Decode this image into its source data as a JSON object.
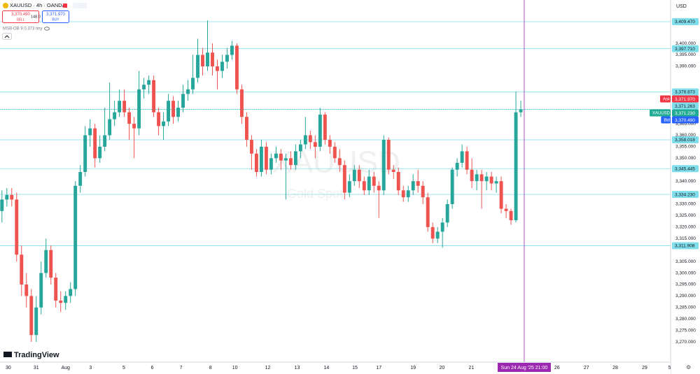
{
  "header": {
    "symbol": "XAUUSD · 4h · OANDA",
    "sell_price": "3,370.490",
    "sell_label": "SELL",
    "spread": "148.0",
    "buy_price": "3,371.970",
    "buy_label": "BUY",
    "indicator": "MSB-OB 9 0.373 tiny",
    "currency": "USD"
  },
  "watermark": {
    "symbol": "XAUUSD",
    "name": "Gold Spot"
  },
  "logo": "TradingView",
  "chart_data": {
    "type": "candlestick",
    "up_color": "#26a69a",
    "down_color": "#ef5350",
    "open": [
      3327,
      3332,
      3334,
      3332,
      3308,
      3295,
      3290,
      3273,
      3285,
      3300,
      3310,
      3298,
      3288,
      3287,
      3290,
      3293,
      3338,
      3344,
      3360,
      3363,
      3350,
      3355,
      3360,
      3367,
      3370,
      3375,
      3370,
      3365,
      3363,
      3380,
      3382,
      3384,
      3370,
      3364,
      3366,
      3375,
      3368,
      3372,
      3378,
      3380,
      3385,
      3395,
      3390,
      3396,
      3390,
      3388,
      3392,
      3395,
      3399,
      3380,
      3368,
      3358,
      3352,
      3344,
      3355,
      3345,
      3350,
      3352,
      3349,
      3350,
      3347,
      3353,
      3356,
      3360,
      3357,
      3355,
      3369,
      3358,
      3355,
      3350,
      3347,
      3335,
      3340,
      3345,
      3340,
      3336,
      3342,
      3338,
      3336,
      3358,
      3345,
      3344,
      3336,
      3333,
      3336,
      3340,
      3338,
      3333,
      3320,
      3315,
      3318,
      3322,
      3330,
      3345,
      3348,
      3353,
      3345,
      3340,
      3343,
      3340,
      3342,
      3339,
      3340,
      3328,
      3327,
      3323,
      3370
    ],
    "high": [
      3336,
      3337,
      3337,
      3335,
      3312,
      3300,
      3293,
      3290,
      3305,
      3315,
      3312,
      3300,
      3292,
      3292,
      3296,
      3340,
      3347,
      3364,
      3367,
      3365,
      3360,
      3372,
      3383,
      3375,
      3380,
      3380,
      3372,
      3368,
      3388,
      3385,
      3386,
      3386,
      3372,
      3370,
      3378,
      3377,
      3375,
      3382,
      3384,
      3395,
      3402,
      3398,
      3410,
      3400,
      3393,
      3395,
      3398,
      3401,
      3400,
      3382,
      3370,
      3360,
      3354,
      3358,
      3357,
      3352,
      3355,
      3354,
      3352,
      3353,
      3356,
      3358,
      3368,
      3362,
      3360,
      3372,
      3370,
      3360,
      3357,
      3354,
      3349,
      3343,
      3347,
      3347,
      3342,
      3345,
      3344,
      3340,
      3360,
      3359,
      3347,
      3346,
      3338,
      3338,
      3343,
      3345,
      3340,
      3335,
      3322,
      3320,
      3324,
      3332,
      3346,
      3350,
      3356,
      3355,
      3350,
      3345,
      3345,
      3344,
      3344,
      3342,
      3342,
      3330,
      3328,
      3379,
      3375
    ],
    "low": [
      3322,
      3329,
      3329,
      3305,
      3290,
      3285,
      3270,
      3270,
      3282,
      3298,
      3295,
      3285,
      3283,
      3284,
      3287,
      3290,
      3335,
      3342,
      3355,
      3346,
      3348,
      3353,
      3358,
      3364,
      3368,
      3368,
      3358,
      3350,
      3360,
      3376,
      3378,
      3368,
      3360,
      3358,
      3364,
      3365,
      3366,
      3370,
      3375,
      3378,
      3383,
      3386,
      3388,
      3386,
      3380,
      3385,
      3389,
      3393,
      3378,
      3365,
      3355,
      3345,
      3342,
      3342,
      3343,
      3343,
      3348,
      3345,
      3332,
      3345,
      3345,
      3350,
      3354,
      3354,
      3350,
      3353,
      3356,
      3352,
      3348,
      3344,
      3332,
      3333,
      3338,
      3337,
      3334,
      3334,
      3335,
      3324,
      3334,
      3343,
      3341,
      3334,
      3331,
      3331,
      3334,
      3335,
      3330,
      3318,
      3313,
      3313,
      3311,
      3320,
      3328,
      3342,
      3346,
      3343,
      3337,
      3336,
      3328,
      3336,
      3336,
      3335,
      3326,
      3324,
      3321,
      3322,
      3368
    ],
    "close": [
      3332,
      3334,
      3332,
      3308,
      3295,
      3290,
      3273,
      3285,
      3300,
      3310,
      3298,
      3288,
      3287,
      3290,
      3293,
      3338,
      3344,
      3360,
      3363,
      3350,
      3355,
      3360,
      3367,
      3370,
      3375,
      3370,
      3365,
      3363,
      3380,
      3382,
      3384,
      3370,
      3364,
      3366,
      3375,
      3368,
      3372,
      3378,
      3380,
      3385,
      3395,
      3390,
      3396,
      3390,
      3388,
      3392,
      3395,
      3399,
      3380,
      3368,
      3358,
      3352,
      3344,
      3355,
      3345,
      3350,
      3352,
      3349,
      3350,
      3347,
      3353,
      3356,
      3360,
      3357,
      3355,
      3369,
      3358,
      3355,
      3350,
      3347,
      3335,
      3340,
      3345,
      3340,
      3336,
      3342,
      3338,
      3336,
      3358,
      3345,
      3344,
      3336,
      3333,
      3336,
      3340,
      3338,
      3333,
      3320,
      3315,
      3318,
      3322,
      3330,
      3345,
      3348,
      3353,
      3345,
      3340,
      3343,
      3340,
      3342,
      3339,
      3340,
      3328,
      3327,
      3323,
      3370,
      3371.23
    ],
    "ylim": [
      3261.2,
      3418.9
    ],
    "yticks": [
      {
        "value": 3400,
        "label": "3,400.000"
      },
      {
        "value": 3395,
        "label": "3,395.000"
      },
      {
        "value": 3390,
        "label": "3,390.000"
      },
      {
        "value": 3365,
        "label": "3,365.000"
      },
      {
        "value": 3360,
        "label": "3,360.000"
      },
      {
        "value": 3355,
        "label": "3,355.000"
      },
      {
        "value": 3350,
        "label": "3,350.000"
      },
      {
        "value": 3340,
        "label": "3,340.000"
      },
      {
        "value": 3330,
        "label": "3,330.000"
      },
      {
        "value": 3325,
        "label": "3,325.000"
      },
      {
        "value": 3320,
        "label": "3,320.000"
      },
      {
        "value": 3315,
        "label": "3,315.000"
      },
      {
        "value": 3305,
        "label": "3,305.000"
      },
      {
        "value": 3300,
        "label": "3,300.000"
      },
      {
        "value": 3295,
        "label": "3,295.000"
      },
      {
        "value": 3290,
        "label": "3,290.000"
      },
      {
        "value": 3285,
        "label": "3,285.000"
      },
      {
        "value": 3280,
        "label": "3,280.000"
      },
      {
        "value": 3275,
        "label": "3,275.000"
      },
      {
        "value": 3270,
        "label": "3,270.000"
      }
    ],
    "xlim": [
      -0.4,
      136.6
    ],
    "xticks": [
      {
        "value": 1.3,
        "label": "30"
      },
      {
        "value": 7,
        "label": "31"
      },
      {
        "value": 13,
        "label": "Aug"
      },
      {
        "value": 18.1,
        "label": "3"
      },
      {
        "value": 24.9,
        "label": "5"
      },
      {
        "value": 30.7,
        "label": "6"
      },
      {
        "value": 36.6,
        "label": "7"
      },
      {
        "value": 42.6,
        "label": "8"
      },
      {
        "value": 47.6,
        "label": "10"
      },
      {
        "value": 54.3,
        "label": "12"
      },
      {
        "value": 60.3,
        "label": "13"
      },
      {
        "value": 66.3,
        "label": "14"
      },
      {
        "value": 72.1,
        "label": "15"
      },
      {
        "value": 77,
        "label": "17"
      },
      {
        "value": 84,
        "label": "19"
      },
      {
        "value": 89.9,
        "label": "20"
      },
      {
        "value": 95.9,
        "label": "21"
      },
      {
        "value": 113.4,
        "label": "26"
      },
      {
        "value": 119.4,
        "label": "27"
      },
      {
        "value": 125.3,
        "label": "28"
      },
      {
        "value": 131.3,
        "label": "29"
      },
      {
        "value": 136.4,
        "label": "5"
      }
    ],
    "levels": [
      {
        "value": 3409.47,
        "label": "3,409.470"
      },
      {
        "value": 3397.71,
        "label": "3,397.710"
      },
      {
        "value": 3378.873,
        "label": "3,378.873"
      },
      {
        "value": 3371.263,
        "label": "3,371.263"
      },
      {
        "value": 3358.018,
        "label": "3,358.018"
      },
      {
        "value": 3345.445,
        "label": "3,345.445"
      },
      {
        "value": 3334.23,
        "label": "3,334.230"
      },
      {
        "value": 3311.908,
        "label": "3,311.908"
      }
    ],
    "level_color": "#80deea",
    "price_labels": [
      {
        "name": "Ask",
        "value": 3371.97,
        "label": "3,371.970",
        "color": "#f23645"
      },
      {
        "name": "XAUUSD",
        "value": 3371.23,
        "label": "3,371.230",
        "color": "#22ab94"
      },
      {
        "name": "Bid",
        "value": 3370.49,
        "label": "3,370.490",
        "color": "#2962ff"
      }
    ],
    "crosshair": {
      "value": 106.7,
      "label": "Sun 24 Aug '25 21:00",
      "color": "#9c27b0"
    }
  }
}
